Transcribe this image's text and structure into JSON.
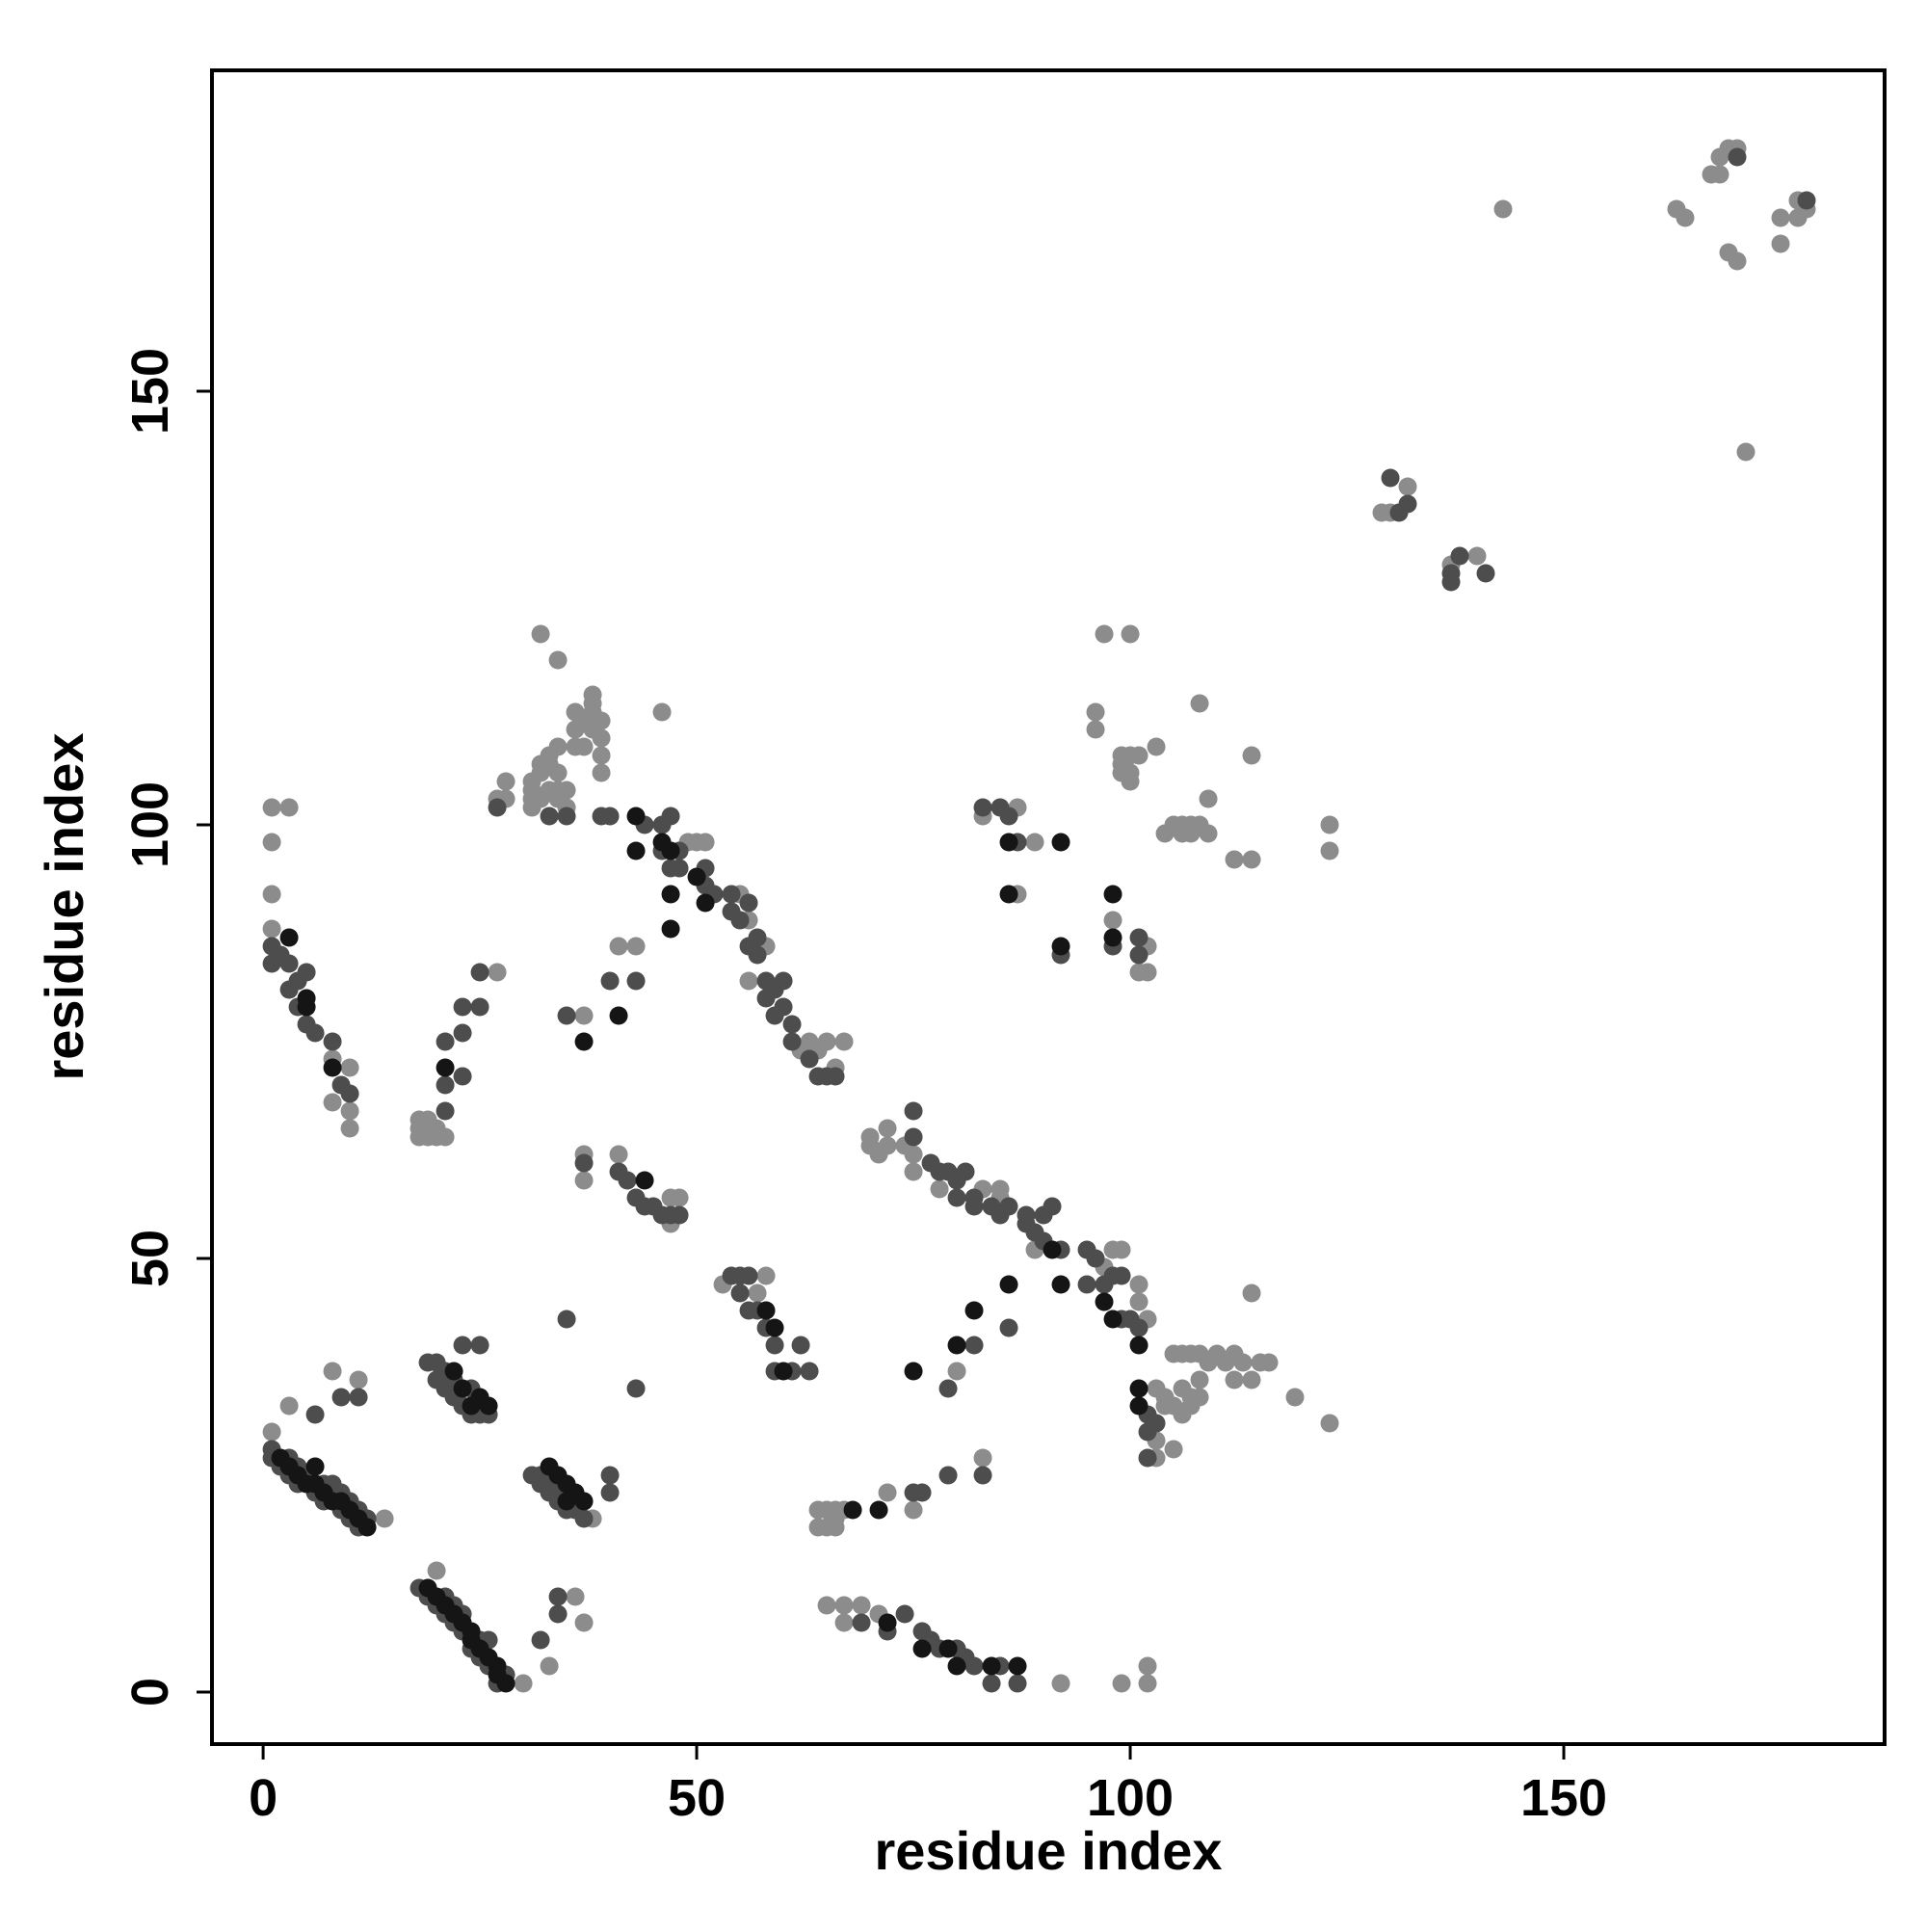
{
  "chart_data": {
    "type": "scatter",
    "xlabel": "residue index",
    "ylabel": "residue index",
    "xlim": [
      -5.9,
      187
    ],
    "ylim": [
      -6,
      187
    ],
    "xticks": [
      0,
      50,
      100,
      150
    ],
    "yticks": [
      0,
      50,
      100,
      150
    ],
    "grid": false,
    "series": [
      {
        "color": "#8c8c8c",
        "x": [
          1,
          3,
          8,
          11,
          14,
          20,
          30,
          33,
          36,
          37,
          38,
          1,
          1,
          3,
          1,
          1,
          8,
          8,
          10,
          10,
          10,
          18,
          18,
          18,
          19,
          19,
          20,
          20,
          21,
          27,
          27,
          28,
          28,
          31,
          31,
          31,
          31,
          32,
          32,
          32,
          33,
          33,
          33,
          34,
          34,
          34,
          34,
          35,
          35,
          36,
          36,
          36,
          37,
          37,
          38,
          38,
          38,
          38,
          39,
          39,
          39,
          39,
          32,
          34,
          46,
          37,
          41,
          43,
          49,
          50,
          51,
          55,
          56,
          56,
          58,
          62,
          63,
          64,
          65,
          66,
          67,
          37,
          37,
          41,
          47,
          47,
          48,
          53,
          57,
          58,
          64,
          64,
          65,
          65,
          66,
          66,
          67,
          66,
          65,
          67,
          67,
          69,
          71,
          75,
          72,
          83,
          80,
          92,
          99,
          102,
          102,
          70,
          70,
          71,
          72,
          72,
          74,
          75,
          75,
          78,
          83,
          85,
          85,
          89,
          97,
          98,
          99,
          101,
          101,
          102,
          103,
          103,
          103,
          104,
          104,
          105,
          105,
          106,
          106,
          107,
          107,
          108,
          108,
          109,
          105,
          106,
          107,
          108,
          110,
          111,
          112,
          112,
          113,
          114,
          115,
          116,
          114,
          119,
          123,
          83,
          87,
          89,
          87,
          101,
          102,
          102,
          98,
          96,
          96,
          97,
          100,
          99,
          99,
          99,
          100,
          100,
          100,
          101,
          103,
          104,
          105,
          106,
          106,
          107,
          107,
          108,
          108,
          109,
          109,
          112,
          114,
          114,
          123,
          123,
          129,
          130,
          132,
          137,
          140,
          143,
          163,
          164,
          167,
          168,
          168,
          169,
          170,
          169,
          170,
          171,
          175,
          175,
          177,
          177,
          178
        ],
        "values": [
          30,
          33,
          37,
          36,
          20,
          14,
          1,
          3,
          11,
          8,
          20,
          102,
          98,
          102,
          92,
          88,
          73,
          68,
          72,
          67,
          65,
          66,
          65,
          64,
          66,
          64,
          65,
          64,
          64,
          83,
          103,
          103,
          105,
          103,
          104,
          105,
          102,
          106,
          103,
          107,
          107,
          104,
          108,
          106,
          104,
          103,
          109,
          104,
          102,
          109,
          111,
          113,
          109,
          112,
          114,
          115,
          113,
          111,
          112,
          110,
          108,
          106,
          122,
          119,
          113,
          78,
          86,
          86,
          98,
          98,
          98,
          92,
          89,
          82,
          86,
          74,
          75,
          74,
          75,
          72,
          75,
          62,
          59,
          62,
          57,
          54,
          57,
          47,
          46,
          48,
          21,
          19,
          21,
          19,
          20,
          21,
          21,
          19,
          10,
          10,
          8,
          10,
          9,
          21,
          23,
          27,
          37,
          1,
          1,
          3,
          1,
          63,
          64,
          62,
          65,
          63,
          63,
          62,
          60,
          58,
          58,
          58,
          57,
          51,
          49,
          51,
          51,
          47,
          45,
          43,
          35,
          29,
          27,
          34,
          33,
          33,
          28,
          35,
          32,
          34,
          33,
          34,
          36,
          38,
          39,
          39,
          39,
          39,
          39,
          38,
          39,
          36,
          38,
          36,
          38,
          38,
          46,
          34,
          31,
          101,
          102,
          98,
          92,
          83,
          83,
          86,
          89,
          113,
          111,
          122,
          122,
          108,
          107,
          106,
          108,
          106,
          105,
          108,
          109,
          99,
          100,
          99,
          100,
          100,
          99,
          100,
          114,
          103,
          99,
          96,
          96,
          108,
          100,
          97,
          136,
          136,
          139,
          130,
          131,
          171,
          171,
          170,
          175,
          175,
          177,
          178,
          178,
          166,
          165,
          143,
          167,
          170,
          172,
          170,
          171
        ]
      },
      {
        "color": "#4d4d4d",
        "x": [
          1,
          1,
          2,
          3,
          3,
          4,
          4,
          5,
          6,
          7,
          7,
          8,
          8,
          9,
          9,
          10,
          10,
          11,
          11,
          12,
          6,
          9,
          11,
          1,
          1,
          2,
          3,
          3,
          4,
          4,
          5,
          5,
          6,
          8,
          9,
          10,
          18,
          19,
          20,
          21,
          21,
          22,
          22,
          23,
          23,
          24,
          25,
          25,
          26,
          26,
          27,
          28,
          32,
          34,
          34,
          19,
          20,
          20,
          21,
          21,
          22,
          22,
          23,
          24,
          24,
          25,
          26,
          23,
          25,
          31,
          32,
          32,
          33,
          33,
          34,
          34,
          35,
          36,
          37,
          40,
          40,
          21,
          21,
          23,
          23,
          23,
          25,
          25,
          21,
          27,
          33,
          35,
          39,
          40,
          44,
          46,
          46,
          47,
          47,
          48,
          48,
          51,
          51,
          52,
          54,
          54,
          55,
          56,
          56,
          57,
          57,
          58,
          58,
          59,
          59,
          60,
          60,
          61,
          61,
          63,
          64,
          65,
          66,
          43,
          40,
          35,
          35,
          43,
          37,
          41,
          42,
          43,
          44,
          45,
          46,
          47,
          48,
          54,
          55,
          55,
          56,
          56,
          57,
          58,
          59,
          59,
          61,
          62,
          63,
          69,
          72,
          74,
          76,
          77,
          78,
          80,
          81,
          82,
          84,
          85,
          87,
          75,
          76,
          79,
          83,
          79,
          82,
          86,
          75,
          75,
          77,
          78,
          79,
          80,
          80,
          81,
          82,
          82,
          84,
          85,
          86,
          88,
          88,
          89,
          90,
          90,
          91,
          92,
          95,
          95,
          96,
          97,
          98,
          99,
          99,
          100,
          101,
          102,
          102,
          103,
          102,
          83,
          85,
          86,
          87,
          101,
          101,
          92,
          98,
          130,
          132,
          131,
          137,
          137,
          138,
          141,
          170,
          178
        ],
        "values": [
          28,
          27,
          26,
          27,
          25,
          26,
          24,
          25,
          23,
          24,
          22,
          24,
          23,
          23,
          21,
          22,
          20,
          21,
          19,
          20,
          32,
          34,
          34,
          86,
          84,
          85,
          84,
          81,
          82,
          79,
          83,
          77,
          76,
          75,
          70,
          69,
          12,
          11,
          10,
          11,
          9,
          10,
          8,
          9,
          7,
          5,
          6,
          4,
          6,
          3,
          1,
          2,
          6,
          11,
          9,
          38,
          38,
          36,
          37,
          35,
          36,
          34,
          33,
          35,
          32,
          32,
          32,
          40,
          40,
          25,
          25,
          24,
          24,
          23,
          23,
          22,
          21,
          21,
          20,
          25,
          23,
          67,
          75,
          71,
          76,
          79,
          79,
          83,
          70,
          102,
          101,
          101,
          101,
          101,
          100,
          100,
          97,
          101,
          95,
          97,
          95,
          95,
          93,
          92,
          92,
          90,
          89,
          91,
          86,
          87,
          85,
          82,
          80,
          81,
          78,
          82,
          79,
          77,
          75,
          73,
          71,
          71,
          71,
          82,
          82,
          78,
          43,
          35,
          61,
          60,
          59,
          57,
          56,
          56,
          55,
          55,
          55,
          48,
          48,
          46,
          48,
          44,
          44,
          42,
          40,
          37,
          37,
          40,
          37,
          8,
          7,
          9,
          7,
          6,
          5,
          5,
          4,
          3,
          1,
          3,
          1,
          23,
          23,
          25,
          25,
          35,
          40,
          42,
          67,
          64,
          61,
          60,
          60,
          59,
          57,
          60,
          57,
          56,
          56,
          55,
          56,
          55,
          54,
          53,
          55,
          52,
          56,
          51,
          51,
          47,
          50,
          47,
          48,
          48,
          43,
          43,
          42,
          32,
          30,
          31,
          27,
          102,
          102,
          101,
          98,
          87,
          85,
          85,
          86,
          140,
          137,
          136,
          129,
          128,
          131,
          129,
          177,
          172
        ]
      },
      {
        "color": "#151515",
        "x": [
          2,
          3,
          4,
          5,
          6,
          6,
          7,
          8,
          9,
          10,
          11,
          12,
          3,
          5,
          5,
          8,
          19,
          20,
          21,
          22,
          23,
          24,
          24,
          25,
          26,
          27,
          27,
          28,
          22,
          23,
          24,
          25,
          26,
          33,
          34,
          35,
          35,
          36,
          37,
          21,
          43,
          46,
          47,
          43,
          47,
          47,
          50,
          51,
          41,
          37,
          44,
          58,
          59,
          60,
          75,
          80,
          86,
          82,
          79,
          80,
          84,
          87,
          72,
          76,
          71,
          68,
          86,
          86,
          92,
          92,
          98,
          98,
          92,
          97,
          98,
          101,
          101,
          101,
          91
        ],
        "values": [
          27,
          26,
          25,
          24,
          26,
          24,
          23,
          22,
          22,
          21,
          20,
          19,
          87,
          80,
          79,
          72,
          12,
          11,
          10,
          9,
          8,
          7,
          6,
          5,
          4,
          3,
          2,
          1,
          37,
          35,
          33,
          34,
          33,
          26,
          25,
          24,
          22,
          23,
          22,
          72,
          101,
          98,
          92,
          97,
          88,
          97,
          94,
          91,
          78,
          75,
          59,
          44,
          42,
          37,
          37,
          40,
          47,
          44,
          5,
          3,
          3,
          3,
          8,
          5,
          21,
          21,
          98,
          92,
          98,
          86,
          92,
          87,
          47,
          45,
          43,
          40,
          35,
          33,
          51
        ]
      }
    ]
  }
}
